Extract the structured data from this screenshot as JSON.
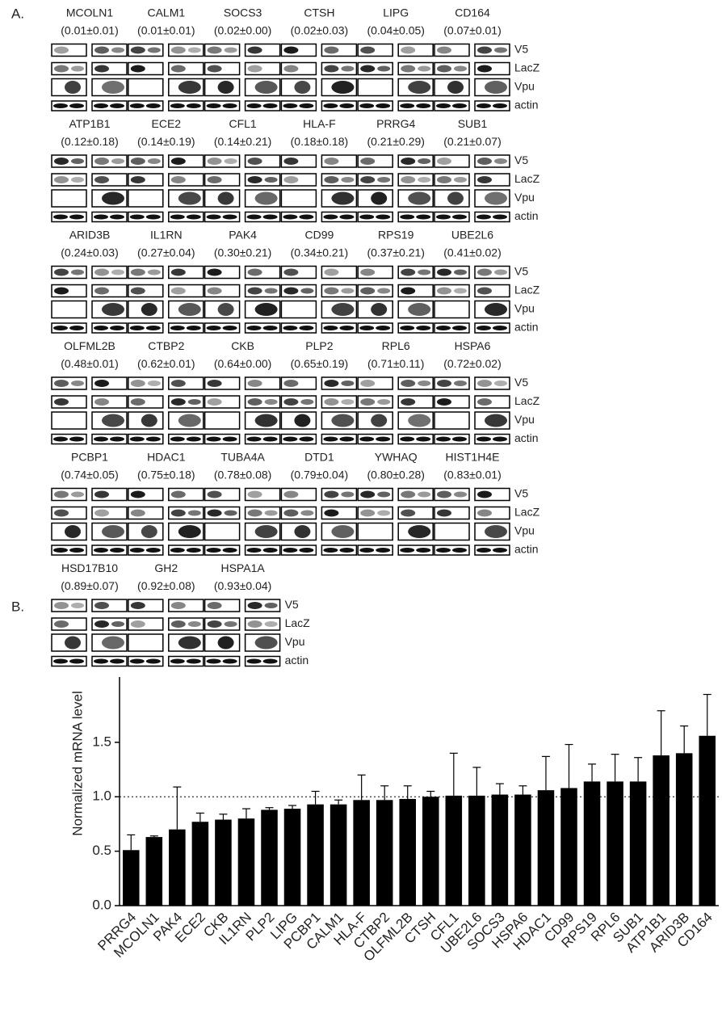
{
  "panel_a": {
    "label": "A.",
    "row_labels": [
      "V5",
      "LacZ",
      "Vpu",
      "actin"
    ],
    "genes": [
      {
        "name": "MCOLN1",
        "ratio": "(0.01±0.01)"
      },
      {
        "name": "CALM1",
        "ratio": "(0.01±0.01)"
      },
      {
        "name": "SOCS3",
        "ratio": "(0.02±0.00)"
      },
      {
        "name": "CTSH",
        "ratio": "(0.02±0.03)"
      },
      {
        "name": "LIPG",
        "ratio": "(0.04±0.05)"
      },
      {
        "name": "CD164",
        "ratio": "(0.07±0.01)"
      },
      {
        "name": "ATP1B1",
        "ratio": "(0.12±0.18)"
      },
      {
        "name": "ECE2",
        "ratio": "(0.14±0.19)"
      },
      {
        "name": "CFL1",
        "ratio": "(0.14±0.21)"
      },
      {
        "name": "HLA-F",
        "ratio": "(0.18±0.18)"
      },
      {
        "name": "PRRG4",
        "ratio": "(0.21±0.29)"
      },
      {
        "name": "SUB1",
        "ratio": "(0.21±0.07)"
      },
      {
        "name": "ARID3B",
        "ratio": "(0.24±0.03)"
      },
      {
        "name": "IL1RN",
        "ratio": "(0.27±0.04)"
      },
      {
        "name": "PAK4",
        "ratio": "(0.30±0.21)"
      },
      {
        "name": "CD99",
        "ratio": "(0.34±0.21)"
      },
      {
        "name": "RPS19",
        "ratio": "(0.37±0.21)"
      },
      {
        "name": "UBE2L6",
        "ratio": "(0.41±0.02)"
      },
      {
        "name": "OLFML2B",
        "ratio": "(0.48±0.01)"
      },
      {
        "name": "CTBP2",
        "ratio": "(0.62±0.01)"
      },
      {
        "name": "CKB",
        "ratio": "(0.64±0.00)"
      },
      {
        "name": "PLP2",
        "ratio": "(0.65±0.19)"
      },
      {
        "name": "RPL6",
        "ratio": "(0.71±0.11)"
      },
      {
        "name": "HSPA6",
        "ratio": "(0.72±0.02)"
      },
      {
        "name": "PCBP1",
        "ratio": "(0.74±0.05)"
      },
      {
        "name": "HDAC1",
        "ratio": "(0.75±0.18)"
      },
      {
        "name": "TUBA4A",
        "ratio": "(0.78±0.08)"
      },
      {
        "name": "DTD1",
        "ratio": "(0.79±0.04)"
      },
      {
        "name": "YWHAQ",
        "ratio": "(0.80±0.28)"
      },
      {
        "name": "HIST1H4E",
        "ratio": "(0.83±0.01)"
      },
      {
        "name": "HSD17B10",
        "ratio": "(0.89±0.07)"
      },
      {
        "name": "GH2",
        "ratio": "(0.92±0.08)"
      },
      {
        "name": "HSPA1A",
        "ratio": "(0.93±0.04)"
      }
    ]
  },
  "chart_data": {
    "type": "bar",
    "panel_label": "B.",
    "y_label": "Normalized mRNA level",
    "categories": [
      "PRRG4",
      "MCOLN1",
      "PAK4",
      "ECE2",
      "CKB",
      "IL1RN",
      "PLP2",
      "LIPG",
      "PCBP1",
      "CALM1",
      "HLA-F",
      "CTBP2",
      "OLFML2B",
      "CTSH",
      "CFL1",
      "UBE2L6",
      "SOCS3",
      "HSPA6",
      "HDAC1",
      "CD99",
      "RPS19",
      "RPL6",
      "SUB1",
      "ATP1B1",
      "ARID3B",
      "CD164"
    ],
    "values": [
      0.51,
      0.63,
      0.7,
      0.77,
      0.79,
      0.8,
      0.88,
      0.89,
      0.93,
      0.93,
      0.97,
      0.97,
      0.98,
      1.0,
      1.01,
      1.01,
      1.02,
      1.02,
      1.06,
      1.08,
      1.14,
      1.14,
      1.14,
      1.38,
      1.4,
      1.56
    ],
    "errors": [
      0.14,
      0.01,
      0.39,
      0.08,
      0.05,
      0.09,
      0.02,
      0.03,
      0.12,
      0.04,
      0.23,
      0.13,
      0.12,
      0.05,
      0.39,
      0.26,
      0.1,
      0.08,
      0.31,
      0.4,
      0.16,
      0.25,
      0.22,
      0.41,
      0.25,
      0.38
    ],
    "color": "#000000",
    "reference_line": 1,
    "ylim": [
      0,
      2.1
    ],
    "yticks": [
      {
        "value": 0,
        "label": "0.0"
      },
      0.5,
      {
        "value": 1,
        "label": "1.0"
      },
      1.5
    ]
  }
}
